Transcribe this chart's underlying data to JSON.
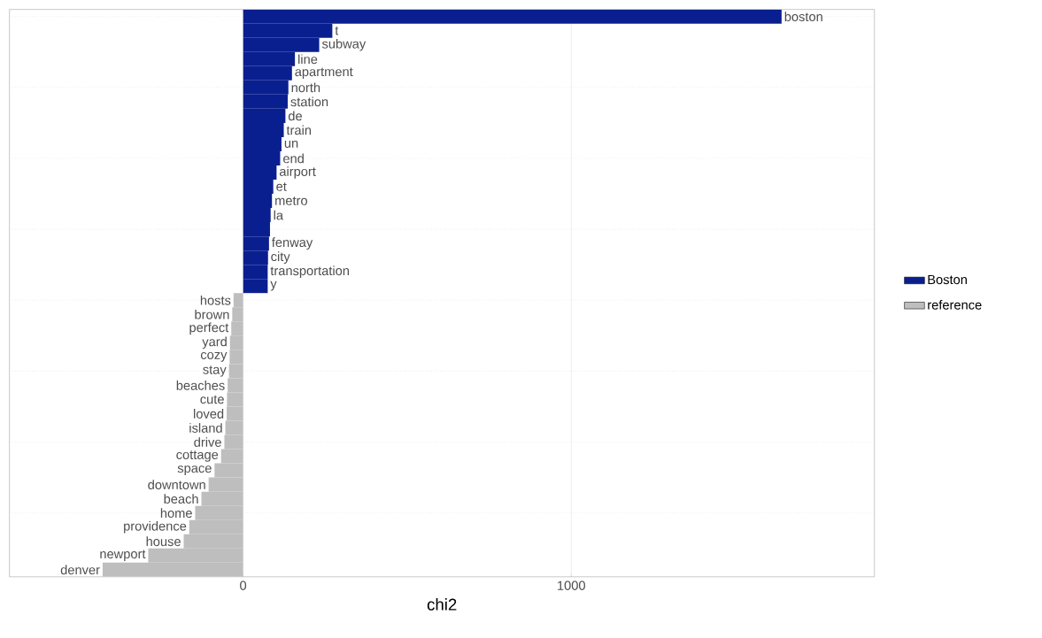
{
  "chart_data": {
    "type": "bar",
    "orientation": "horizontal",
    "xlabel": "chi2",
    "categories": [
      "boston",
      "t",
      "subway",
      "line",
      "apartment",
      "north",
      "station",
      "de",
      "train",
      "un",
      "end",
      "airport",
      "et",
      "metro",
      "la",
      null,
      "fenway",
      "city",
      "transportation",
      "y",
      "hosts",
      "brown",
      "perfect",
      "yard",
      "cozy",
      "stay",
      "beaches",
      "cute",
      "loved",
      "island",
      "drive",
      "cottage",
      "space",
      "downtown",
      "beach",
      "home",
      "providence",
      "house",
      "newport",
      "denver"
    ],
    "series": [
      {
        "name": "Boston",
        "color": "#0a1f8f",
        "values": [
          1641,
          272,
          232,
          158,
          149,
          138,
          136,
          129,
          124,
          117,
          113,
          102,
          92,
          88,
          84,
          82,
          79,
          76,
          75,
          75,
          null,
          null,
          null,
          null,
          null,
          null,
          null,
          null,
          null,
          null,
          null,
          null,
          null,
          null,
          null,
          null,
          null,
          null,
          null,
          null
        ]
      },
      {
        "name": "reference",
        "color": "#bebebe",
        "values": [
          null,
          null,
          null,
          null,
          null,
          null,
          null,
          null,
          null,
          null,
          null,
          null,
          null,
          null,
          null,
          null,
          null,
          null,
          null,
          null,
          -29,
          -33,
          -36,
          -40,
          -41,
          -43,
          -47,
          -49,
          -50,
          -54,
          -57,
          -67,
          -87,
          -105,
          -127,
          -146,
          -164,
          -181,
          -289,
          -428
        ]
      }
    ],
    "xlim": [
      -712,
      1924
    ],
    "xticks": [
      0,
      1000
    ],
    "grid": true,
    "legend": "right"
  }
}
